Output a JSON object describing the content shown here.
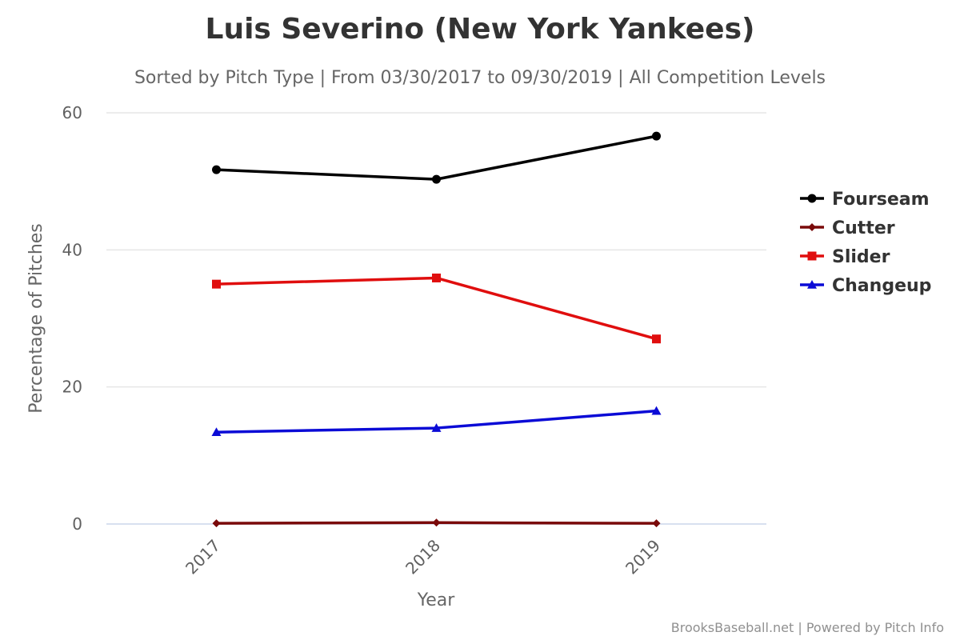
{
  "chart_data": {
    "type": "line",
    "title": "Luis Severino (New York Yankees)",
    "subtitle": "Sorted by Pitch Type | From 03/30/2017 to 09/30/2019 | All Competition Levels",
    "xlabel": "Year",
    "ylabel": "Percentage of Pitches",
    "categories": [
      "2017",
      "2018",
      "2019"
    ],
    "ylim": [
      0,
      60
    ],
    "yticks": [
      0,
      20,
      40,
      60
    ],
    "grid": true,
    "legend_position": "right",
    "series": [
      {
        "name": "Fourseam",
        "color": "#000000",
        "marker": "circle",
        "values": [
          51.7,
          50.3,
          56.6
        ]
      },
      {
        "name": "Cutter",
        "color": "#7a0a0a",
        "marker": "diamond",
        "values": [
          0.1,
          0.2,
          0.1
        ]
      },
      {
        "name": "Slider",
        "color": "#e00e0e",
        "marker": "square",
        "values": [
          35.0,
          35.9,
          27.0
        ]
      },
      {
        "name": "Changeup",
        "color": "#0b0bd6",
        "marker": "triangle",
        "values": [
          13.4,
          14.0,
          16.5
        ]
      }
    ],
    "credits": "BrooksBaseball.net | Powered by Pitch Info"
  }
}
